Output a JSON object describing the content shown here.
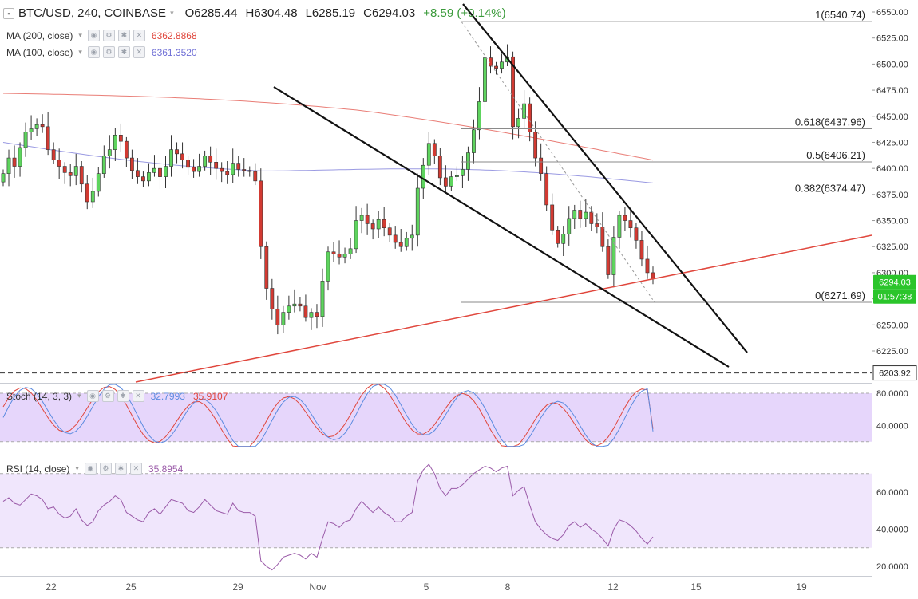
{
  "header": {
    "symbol": "BTC/USD, 240, COINBASE",
    "open_label": "O",
    "open": "6285.44",
    "high_label": "H",
    "high": "6304.48",
    "low_label": "L",
    "low": "6285.19",
    "close_label": "C",
    "close": "6294.03",
    "change": "+8.59 (+0.14%)"
  },
  "indicators": {
    "ma200": {
      "label": "MA (200, close)",
      "value": "6362.8868",
      "color": "#e0463c"
    },
    "ma100": {
      "label": "MA (100, close)",
      "value": "6361.3520",
      "color": "#6f6fd6"
    },
    "stoch": {
      "label": "Stoch (14, 3, 3)",
      "k": "32.7993",
      "d": "35.9107",
      "k_color": "#5b8be0",
      "d_color": "#e0463c"
    },
    "rsi": {
      "label": "RSI (14, close)",
      "value": "35.8954",
      "color": "#9a5aa8"
    }
  },
  "price_tags": {
    "last": "6294.03",
    "countdown": "01:57:38",
    "support": "6203.92"
  },
  "fib_levels": [
    {
      "label": "1(6540.74)",
      "price": 6540.74
    },
    {
      "label": "0.618(6437.96)",
      "price": 6437.96
    },
    {
      "label": "0.5(6406.21)",
      "price": 6406.21
    },
    {
      "label": "0.382(6374.47)",
      "price": 6374.47
    },
    {
      "label": "0(6271.69)",
      "price": 6271.69
    }
  ],
  "colors": {
    "up": "#5ed45e",
    "down": "#d23a32",
    "trend": "#e0463c",
    "band": "#e6d6fb",
    "rsi_band": "#f0e6fc"
  },
  "chart_data": [
    {
      "type": "candlestick",
      "title": "BTC/USD, 240, COINBASE",
      "x_ticks": [
        "22",
        "25",
        "29",
        "Nov",
        "5",
        "8",
        "12",
        "15",
        "19"
      ],
      "y_ticks": [
        "6550.00",
        "6525.00",
        "6500.00",
        "6475.00",
        "6450.00",
        "6425.00",
        "6400.00",
        "6375.00",
        "6350.00",
        "6325.00",
        "6300.00",
        "6275.00",
        "6250.00",
        "6225.00"
      ],
      "ylim": [
        6194,
        6556
      ],
      "close": [
        6395,
        6410,
        6402,
        6420,
        6435,
        6438,
        6442,
        6440,
        6418,
        6408,
        6402,
        6396,
        6393,
        6402,
        6385,
        6368,
        6378,
        6395,
        6412,
        6418,
        6432,
        6426,
        6410,
        6398,
        6392,
        6388,
        6396,
        6400,
        6392,
        6402,
        6418,
        6414,
        6408,
        6401,
        6397,
        6402,
        6412,
        6406,
        6400,
        6397,
        6394,
        6405,
        6399,
        6398,
        6397,
        6388,
        6325,
        6285,
        6265,
        6250,
        6262,
        6268,
        6270,
        6268,
        6257,
        6262,
        6258,
        6292,
        6320,
        6318,
        6315,
        6318,
        6323,
        6350,
        6355,
        6347,
        6342,
        6351,
        6343,
        6336,
        6329,
        6325,
        6333,
        6336,
        6381,
        6403,
        6424,
        6412,
        6391,
        6383,
        6392,
        6393,
        6399,
        6415,
        6437,
        6464,
        6506,
        6498,
        6496,
        6502,
        6507,
        6440,
        6448,
        6462,
        6435,
        6410,
        6395,
        6365,
        6341,
        6328,
        6337,
        6352,
        6360,
        6352,
        6358,
        6347,
        6344,
        6325,
        6298,
        6334,
        6355,
        6350,
        6343,
        6331,
        6313,
        6300,
        6294
      ],
      "ma200": {
        "name": "MA (200, close)",
        "last": 6362.8868
      },
      "ma100": {
        "name": "MA (100, close)",
        "last": 6361.352
      }
    },
    {
      "type": "line",
      "title": "Stoch (14, 3, 3)",
      "y_ticks": [
        "80.0000",
        "40.0000"
      ],
      "ylim": [
        12,
        93
      ],
      "band": [
        20,
        80
      ],
      "series": [
        {
          "name": "%K",
          "last": 32.7993
        },
        {
          "name": "%D",
          "last": 35.9107
        }
      ]
    },
    {
      "type": "line",
      "title": "RSI (14, close)",
      "y_ticks": [
        "60.0000",
        "40.0000",
        "20.0000"
      ],
      "ylim": [
        12,
        78
      ],
      "band": [
        30,
        70
      ],
      "series": [
        {
          "name": "RSI",
          "values": [
            55,
            57,
            54,
            53,
            56,
            59,
            58,
            56,
            51,
            52,
            48,
            46,
            47,
            51,
            45,
            42,
            44,
            50,
            53,
            55,
            58,
            56,
            49,
            47,
            45,
            44,
            49,
            51,
            48,
            52,
            56,
            55,
            54,
            50,
            49,
            52,
            56,
            53,
            50,
            49,
            48,
            54,
            50,
            49,
            49,
            47,
            23,
            20,
            18,
            21,
            25,
            26,
            27,
            26,
            24,
            27,
            25,
            35,
            44,
            43,
            41,
            44,
            45,
            51,
            55,
            52,
            49,
            52,
            49,
            47,
            44,
            44,
            47,
            49,
            66,
            72,
            75,
            70,
            62,
            58,
            62,
            62,
            64,
            67,
            70,
            72,
            74,
            73,
            71,
            73,
            74,
            58,
            61,
            63,
            53,
            44,
            40,
            37,
            35,
            34,
            37,
            42,
            44,
            41,
            43,
            40,
            38,
            35,
            31,
            40,
            45,
            44,
            42,
            39,
            35,
            32,
            35.8954
          ]
        }
      ]
    }
  ],
  "x_axis": [
    "22",
    "25",
    "29",
    "Nov",
    "5",
    "8",
    "12",
    "15",
    "19"
  ]
}
